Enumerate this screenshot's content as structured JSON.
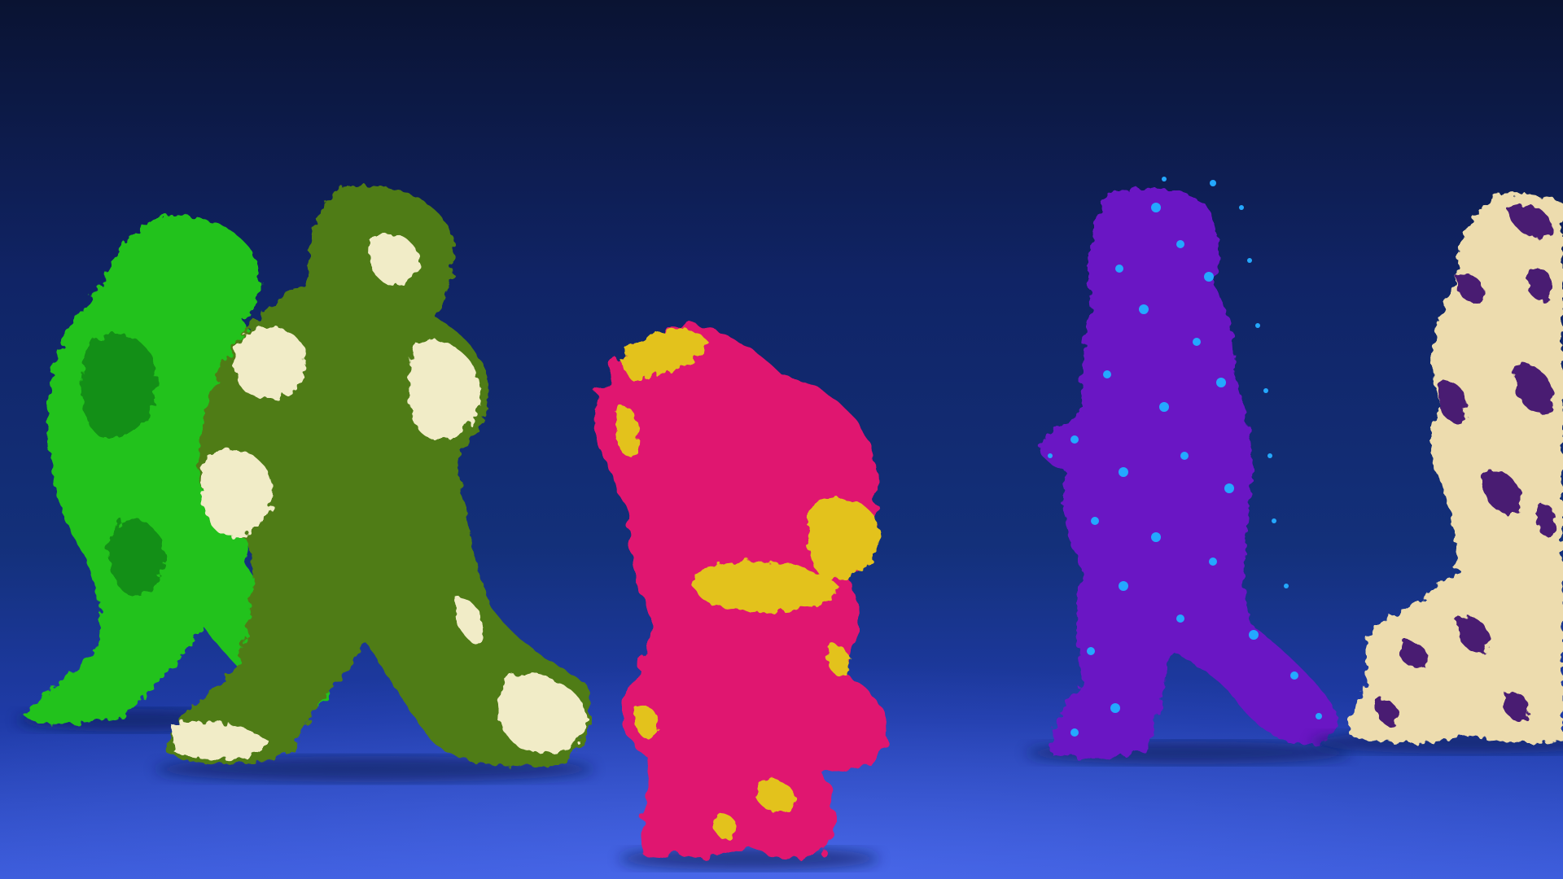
{
  "scene": {
    "background": {
      "top_color": "#0a1332",
      "mid_color": "#13307a",
      "floor_color": "#3a5ad8",
      "floor_far_color": "#1f3ba8"
    },
    "figures": [
      {
        "name": "figure-green-leafy",
        "body_color": "#23c21f",
        "accent_color": "#0d7a12",
        "texture": "leaves",
        "pose": "walking-right"
      },
      {
        "name": "figure-olive-cream",
        "body_color": "#4f7b14",
        "accent_color": "#f1ecc7",
        "texture": "grass-with-cream-patches",
        "pose": "walking-right"
      },
      {
        "name": "figure-magenta-fur",
        "body_color": "#e0146f",
        "accent_color": "#e3c21c",
        "texture": "fur-with-yellow-tufts",
        "pose": "walking-toward-viewer"
      },
      {
        "name": "figure-purple-petals",
        "body_color": "#6b16c4",
        "accent_color": "#24a8ff",
        "texture": "petals-with-blue-particles",
        "pose": "walking-right"
      },
      {
        "name": "figure-cream-marble",
        "body_color": "#eddcae",
        "accent_color": "#4a1a72",
        "texture": "marbled-swirls",
        "pose": "walking-right"
      }
    ]
  }
}
